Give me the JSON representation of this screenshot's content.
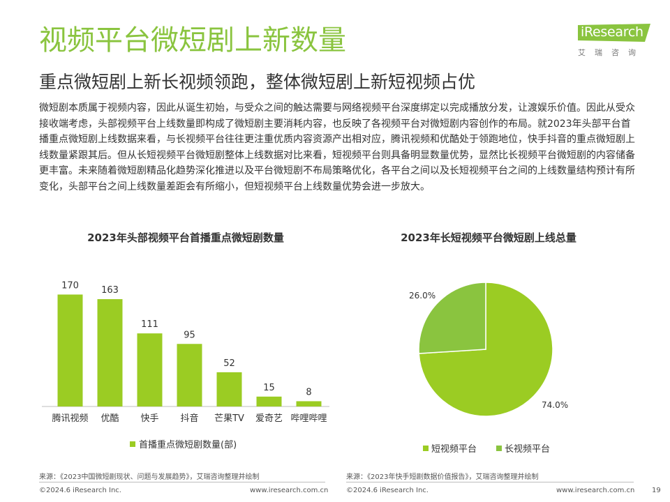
{
  "title": "视频平台微短剧上新数量",
  "subtitle": "重点微短剧上新长视频领跑，整体微短剧上新短视频占优",
  "body": "微短剧本质属于视频内容，因此从诞生初始，与受众之间的触达需要与网络视频平台深度绑定以完成播放分发，让渡娱乐价值。因此从受众接收端考虑，头部视频平台上线数量即构成了微短剧主要消耗内容，也反映了各视频平台对微短剧内容创作的布局。就2023年头部平台首播重点微短剧上线数据来看，与长视频平台往往更注重优质内容资源产出相对应，腾讯视频和优酷处于领跑地位，快手抖音的重点微短剧上线数量紧跟其后。但从长短视频平台微短剧整体上线数据对比来看，短视频平台则具备明显数量优势，显然比长视频平台微短剧的内容储备更丰富。未来随着微短剧精品化趋势深化推进以及平台微短剧不布局策略优化，各平台之间以及长短视频平台之间的上线数量结构预计有所变化，头部平台之间上线数量差距会有所缩小，但短视频平台上线数量优势会进一步放大。",
  "logo": {
    "wordmark": "iResearch",
    "tagline": "艾瑞咨询"
  },
  "colors": {
    "accent": "#8ac43f",
    "bar": "#9bcc23",
    "pie_short": "#9bcc23",
    "pie_long": "#8ac43f"
  },
  "chart_data": [
    {
      "type": "bar",
      "title": "2023年头部视频平台首播重点微短剧数量",
      "categories": [
        "腾讯视频",
        "优酷",
        "快手",
        "抖音",
        "芒果TV",
        "爱奇艺",
        "哔哩哔哩"
      ],
      "series": [
        {
          "name": "首播重点微短剧数量(部)",
          "values": [
            170,
            163,
            111,
            95,
            52,
            15,
            8
          ]
        }
      ],
      "ylim": [
        0,
        180
      ],
      "grid": false,
      "legend": "bottom"
    },
    {
      "type": "pie",
      "title": "2023年长短视频平台微短剧上线总量",
      "labels": [
        "短视频平台",
        "长视频平台"
      ],
      "values": [
        74.0,
        26.0
      ],
      "value_labels": [
        "74.0%",
        "26.0%"
      ],
      "legend": "bottom"
    }
  ],
  "sources": {
    "left": "来源：《2023中国微短剧现状、问题与发展趋势》，艾瑞咨询整理并绘制",
    "right": "来源：《2023年快手短剧数据价值报告》，艾瑞咨询整理并绘制"
  },
  "footer": {
    "copyright": "©2024.6 iResearch Inc.",
    "url": "www.iresearch.com.cn",
    "page": "19"
  }
}
